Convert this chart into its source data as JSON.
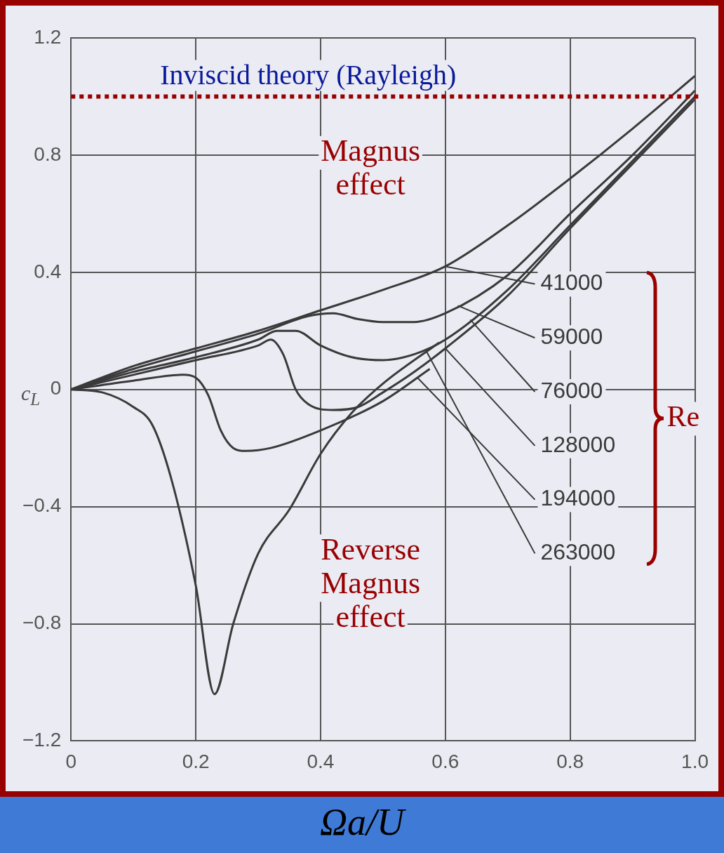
{
  "chart_data": {
    "type": "line",
    "xlabel": "Ωa/U",
    "ylabel": "c$_{L}$",
    "legend_title": "Re",
    "xlim": [
      0,
      1
    ],
    "ylim": [
      -1.2,
      1.2
    ],
    "xticks": [
      0,
      0.2,
      0.4,
      0.6,
      0.8,
      {
        "value": 1,
        "label": "1.0"
      }
    ],
    "yticks": [
      {
        "value": -1.2,
        "label": "−1.2"
      },
      {
        "value": -0.8,
        "label": "−0.8"
      },
      {
        "value": -0.4,
        "label": "−0.4"
      },
      0,
      0.4,
      0.8,
      1.2
    ],
    "grid": true,
    "legend": "right",
    "marker": "none",
    "line_style": "solid",
    "series": [
      {
        "name": "41000",
        "color": "#3a3a3a",
        "x": [
          0,
          0.1,
          0.2,
          0.3,
          0.4,
          0.5,
          0.6,
          0.7,
          0.8,
          0.9,
          1
        ],
        "values": [
          0,
          0.08,
          0.14,
          0.2,
          0.27,
          0.34,
          0.42,
          0.56,
          0.72,
          0.89,
          1.07
        ]
      },
      {
        "name": "59000",
        "color": "#3a3a3a",
        "x": [
          0,
          0.1,
          0.2,
          0.3,
          0.38,
          0.42,
          0.46,
          0.5,
          0.55,
          0.6,
          0.7,
          0.8,
          0.9,
          1
        ],
        "values": [
          0,
          0.07,
          0.13,
          0.19,
          0.25,
          0.26,
          0.24,
          0.23,
          0.23,
          0.26,
          0.39,
          0.6,
          0.8,
          1.02
        ]
      },
      {
        "name": "76000",
        "color": "#3a3a3a",
        "x": [
          0,
          0.1,
          0.2,
          0.3,
          0.33,
          0.36,
          0.4,
          0.45,
          0.5,
          0.55,
          0.6,
          0.7,
          0.8,
          0.9,
          1
        ],
        "values": [
          0,
          0.06,
          0.11,
          0.17,
          0.2,
          0.2,
          0.15,
          0.11,
          0.1,
          0.12,
          0.17,
          0.34,
          0.56,
          0.78,
          1
        ]
      },
      {
        "name": "128000",
        "color": "#3a3a3a",
        "x": [
          0,
          0.1,
          0.2,
          0.3,
          0.32,
          0.34,
          0.36,
          0.38,
          0.42,
          0.46,
          0.5,
          0.55,
          0.6,
          0.7,
          0.8,
          0.9,
          1
        ],
        "values": [
          0,
          0.05,
          0.1,
          0.15,
          0.17,
          0.12,
          0,
          -0.05,
          -0.07,
          -0.06,
          -0.01,
          0.06,
          0.14,
          0.32,
          0.55,
          0.77,
          0.99
        ]
      },
      {
        "name": "194000",
        "color": "#3a3a3a",
        "x": [
          0,
          0.1,
          0.18,
          0.2,
          0.22,
          0.24,
          0.26,
          0.28,
          0.32,
          0.4,
          0.5,
          0.575
        ],
        "values": [
          0,
          0.03,
          0.05,
          0.04,
          -0.02,
          -0.14,
          -0.2,
          -0.21,
          -0.2,
          -0.14,
          -0.04,
          0.07
        ]
      },
      {
        "name": "263000",
        "color": "#3a3a3a",
        "x": [
          0,
          0.05,
          0.1,
          0.13,
          0.16,
          0.2,
          0.23,
          0.26,
          0.3,
          0.35,
          0.4,
          0.45,
          0.5,
          0.59
        ],
        "values": [
          0,
          -0.01,
          -0.06,
          -0.12,
          -0.3,
          -0.67,
          -1.04,
          -0.8,
          -0.56,
          -0.41,
          -0.22,
          -0.08,
          0.02,
          0.16
        ]
      }
    ],
    "ref_lines": [
      {
        "axis": "y",
        "value": 1,
        "label": "Inviscid theory (Rayleigh)",
        "color": "#990000",
        "line_style": "dotted"
      }
    ],
    "annotations": [
      "Magnus effect",
      "Reverse Magnus effect"
    ]
  }
}
